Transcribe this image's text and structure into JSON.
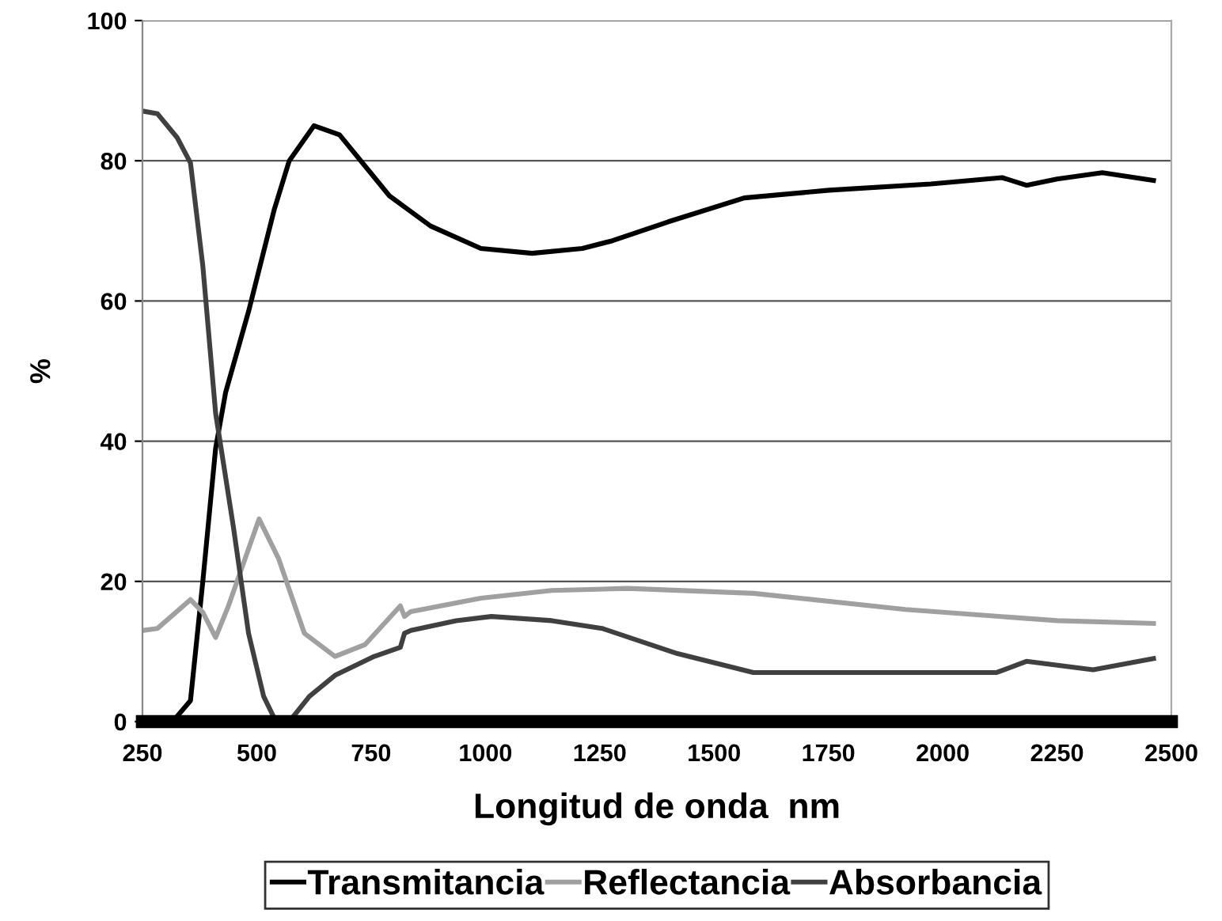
{
  "chart_data": {
    "type": "line",
    "xlabel": "Longitud de onda  nm",
    "ylabel": "%",
    "xlim": [
      250,
      2500
    ],
    "ylim": [
      0,
      100
    ],
    "xticks": [
      250,
      500,
      750,
      1000,
      1250,
      1500,
      1750,
      2000,
      2250,
      2500
    ],
    "yticks": [
      0,
      20,
      40,
      60,
      80,
      100
    ],
    "grid": "y",
    "legend": "bottom",
    "marker": "none",
    "line_style": "solid",
    "series": [
      {
        "name": "Transmitancia",
        "color": "#000000",
        "x": [
          250,
          316,
          355,
          382,
          410,
          432,
          482,
          538,
          571,
          625,
          681,
          790,
          880,
          990,
          1102,
          1212,
          1278,
          1400,
          1566,
          1752,
          1974,
          2130,
          2183,
          2250,
          2349,
          2461
        ],
        "values": [
          0,
          0,
          3,
          20,
          39,
          47,
          58.5,
          73,
          80,
          85,
          83.7,
          75,
          70.7,
          67.5,
          66.8,
          67.5,
          68.6,
          71.3,
          74.7,
          75.8,
          76.7,
          77.6,
          76.5,
          77.4,
          78.3,
          77.2
        ]
      },
      {
        "name": "Reflectancia",
        "color": "#a0a0a0",
        "x": [
          250,
          283,
          355,
          382,
          410,
          438,
          505,
          548,
          604,
          671,
          737,
          814,
          823,
          837,
          990,
          1145,
          1311,
          1586,
          1918,
          2250,
          2461
        ],
        "values": [
          13,
          13.3,
          17.4,
          15.6,
          12,
          16.5,
          28.9,
          23.2,
          12.6,
          9.3,
          11,
          16.5,
          15,
          15.7,
          17.6,
          18.7,
          19,
          18.3,
          16,
          14.4,
          14
        ]
      },
      {
        "name": "Absorbancia",
        "color": "#404040",
        "x": [
          250,
          283,
          326,
          355,
          382,
          410,
          449,
          482,
          515,
          542,
          571,
          615,
          671,
          757,
          814,
          823,
          837,
          936,
          1013,
          1145,
          1255,
          1420,
          1586,
          1808,
          2118,
          2183,
          2329,
          2461
        ],
        "values": [
          87.1,
          86.7,
          83.3,
          79.7,
          65,
          44,
          27.7,
          12.6,
          3.6,
          0,
          0,
          3.6,
          6.6,
          9.3,
          10.6,
          12.6,
          13,
          14.4,
          15,
          14.4,
          13.3,
          9.7,
          7,
          7,
          7,
          8.6,
          7.4,
          9
        ]
      }
    ]
  }
}
